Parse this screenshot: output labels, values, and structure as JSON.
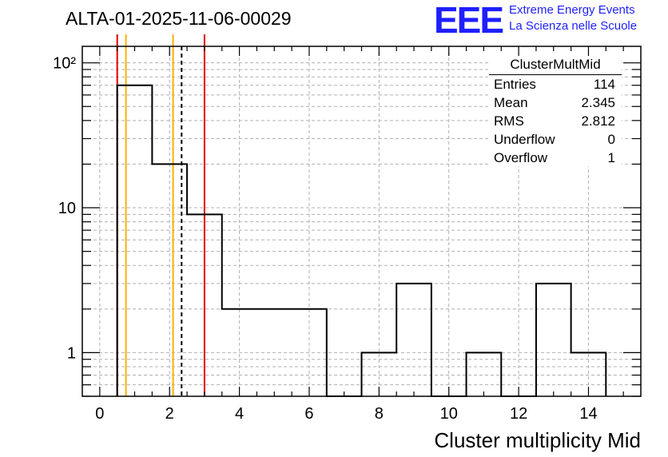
{
  "header": {
    "run_title": "ALTA-01-2025-11-06-00029",
    "logo_text": "EEE",
    "logo_line1": "Extreme Energy Events",
    "logo_line2": "La Scienza nelle Scuole"
  },
  "colors": {
    "histogram": "#000000",
    "red_lines": "#e00000",
    "orange_lines": "#ffb000",
    "logo": "#1f1fff",
    "grid": "#b0b0b0"
  },
  "stats": {
    "title": "ClusterMultMid",
    "rows": [
      {
        "label": "Entries",
        "value": "114"
      },
      {
        "label": "Mean",
        "value": "2.345"
      },
      {
        "label": "RMS",
        "value": "2.812"
      },
      {
        "label": "Underflow",
        "value": "0"
      },
      {
        "label": "Overflow",
        "value": "1"
      }
    ]
  },
  "chart_data": {
    "type": "histogram",
    "title": "ALTA-01-2025-11-06-00029",
    "xlabel": "Cluster multiplicity Mid",
    "ylabel": "",
    "xlim": [
      -0.5,
      15.5
    ],
    "ylim": [
      0.5,
      130
    ],
    "y_scale": "log",
    "grid": true,
    "bin_edges": [
      0.5,
      1.5,
      2.5,
      3.5,
      4.5,
      5.5,
      6.5,
      7.5,
      8.5,
      9.5,
      10.5,
      11.5,
      12.5,
      13.5,
      14.5
    ],
    "counts": [
      70,
      20,
      9,
      2,
      2,
      2,
      0,
      1,
      3,
      0,
      1,
      0,
      3,
      1
    ],
    "x_ticks": [
      "0",
      "2",
      "4",
      "6",
      "8",
      "10",
      "12",
      "14"
    ],
    "y_ticks": [
      "1",
      "10",
      "10²"
    ],
    "vertical_lines": [
      {
        "x": 0.5,
        "color": "red",
        "style": "solid"
      },
      {
        "x": 0.75,
        "color": "orange",
        "style": "solid"
      },
      {
        "x": 2.1,
        "color": "orange",
        "style": "solid"
      },
      {
        "x": 2.345,
        "color": "black",
        "style": "dashed"
      },
      {
        "x": 3.0,
        "color": "red",
        "style": "solid"
      }
    ]
  }
}
